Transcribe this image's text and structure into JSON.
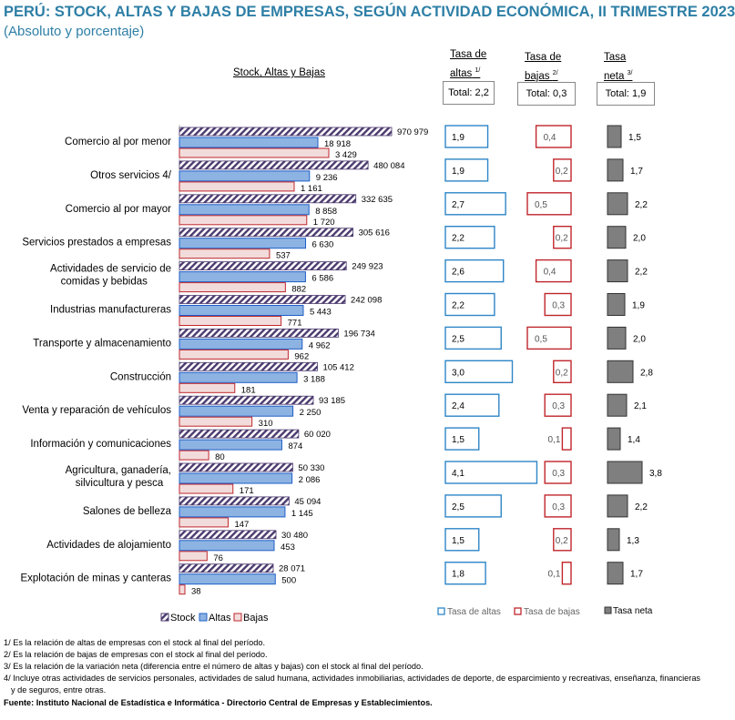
{
  "title": "PERÚ: STOCK, ALTAS Y BAJAS DE EMPRESAS, SEGÚN ACTIVIDAD ECONÓMICA, II TRIMESTRE 2023",
  "subtitle": "(Absoluto y porcentaje)",
  "headers": {
    "stock": "Stock, Altas y Bajas",
    "altas": {
      "line1": "Tasa de",
      "line2": "altas",
      "sup": "1/",
      "total": "Total: 2,2"
    },
    "bajas": {
      "line1": "Tasa de",
      "line2": "bajas",
      "sup": "2/",
      "total": "Total: 0,3"
    },
    "neta": {
      "line1": "Tasa",
      "line2": "neta",
      "sup": "3/",
      "total": "Total: 1,9"
    }
  },
  "colors": {
    "stock": "#4b3a6e",
    "altas": "#8db3e2",
    "altas_border": "#1f5fc8",
    "bajas": "#f2dcdb",
    "bajas_border": "#c0262c",
    "neta": "#7f7f7f",
    "title": "#2e7fa6"
  },
  "chart_data": {
    "type": "bar",
    "orientation": "horizontal",
    "categories": [
      "Comercio al por menor",
      "Otros servicios 4/",
      "Comercio al por mayor",
      "Servicios prestados a empresas",
      "Actividades de servicio de comidas y bebidas",
      "Industrias manufactureras",
      "Transporte y almacenamiento",
      "Construcción",
      "Venta y reparación de vehículos",
      "Información y comunicaciones",
      "Agricultura, ganadería, silvicultura y pesca",
      "Salones de belleza",
      "Actividades de alojamiento",
      "Explotación de minas y canteras"
    ],
    "series": [
      {
        "name": "Stock",
        "values": [
          970979,
          480084,
          332635,
          305616,
          249923,
          242098,
          196734,
          105412,
          93185,
          60020,
          50330,
          45094,
          30480,
          28071
        ],
        "labels": [
          "970 979",
          "480 084",
          "332 635",
          "305 616",
          "249 923",
          "242 098",
          "196 734",
          "105 412",
          "93 185",
          "60 020",
          "50 330",
          "45 094",
          "30 480",
          "28 071"
        ]
      },
      {
        "name": "Altas",
        "values": [
          18918,
          9236,
          8858,
          6630,
          6586,
          5443,
          4962,
          3188,
          2250,
          874,
          2086,
          1145,
          453,
          500
        ],
        "labels": [
          "18 918",
          "9 236",
          "8 858",
          "6 630",
          "6 586",
          "5 443",
          "4 962",
          "3 188",
          "2 250",
          "874",
          "2 086",
          "1 145",
          "453",
          "500"
        ]
      },
      {
        "name": "Bajas",
        "values": [
          3429,
          1161,
          1720,
          537,
          882,
          771,
          962,
          181,
          310,
          80,
          171,
          147,
          76,
          38
        ],
        "labels": [
          "3 429",
          "1 161",
          "1 720",
          "537",
          "882",
          "771",
          "962",
          "181",
          "310",
          "80",
          "171",
          "147",
          "76",
          "38"
        ]
      }
    ],
    "rates": [
      {
        "name": "Tasa de altas",
        "values": [
          1.9,
          1.9,
          2.7,
          2.2,
          2.6,
          2.2,
          2.5,
          3.0,
          2.4,
          1.5,
          4.1,
          2.5,
          1.5,
          1.8
        ],
        "labels": [
          "1,9",
          "1,9",
          "2,7",
          "2,2",
          "2,6",
          "2,2",
          "2,5",
          "3,0",
          "2,4",
          "1,5",
          "4,1",
          "2,5",
          "1,5",
          "1,8"
        ]
      },
      {
        "name": "Tasa de bajas",
        "values": [
          0.4,
          0.2,
          0.5,
          0.2,
          0.4,
          0.3,
          0.5,
          0.2,
          0.3,
          0.1,
          0.3,
          0.3,
          0.2,
          0.1
        ],
        "labels": [
          "0,4",
          "0,2",
          "0,5",
          "0,2",
          "0,4",
          "0,3",
          "0,5",
          "0,2",
          "0,3",
          "0,1",
          "0,3",
          "0,3",
          "0,2",
          "0,1"
        ]
      },
      {
        "name": "Tasa neta",
        "values": [
          1.5,
          1.7,
          2.2,
          2.0,
          2.2,
          1.9,
          2.0,
          2.8,
          2.1,
          1.4,
          3.8,
          2.2,
          1.3,
          1.7
        ],
        "labels": [
          "1,5",
          "1,7",
          "2,2",
          "2,0",
          "2,2",
          "1,9",
          "2,0",
          "2,8",
          "2,1",
          "1,4",
          "3,8",
          "2,2",
          "1,3",
          "1,7"
        ]
      }
    ],
    "legend": {
      "stock": "Stock",
      "altas": "Altas",
      "bajas": "Bajas",
      "tasa_altas": "Tasa de altas",
      "tasa_bajas": "Tasa de bajas",
      "tasa_neta": "Tasa neta",
      "placement": "bottom"
    }
  },
  "footnotes": [
    "1/ Es la relación de altas de empresas con el stock al final del período.",
    "2/ Es la relación de bajas de empresas con el stock al final del período.",
    "3/ Es la relación de la variación neta (diferencia entre el número de altas y bajas) con el stock al final del período.",
    "4/ Incluye otras actividades de servicios personales, actividades de salud humana, actividades inmobiliarias, actividades de deporte, de esparcimiento y recreativas, enseñanza, financieras",
    "y de seguros, entre otras."
  ],
  "source": "Fuente: Instituto Nacional de Estadística e Informática - Directorio Central de Empresas y Establecimientos."
}
